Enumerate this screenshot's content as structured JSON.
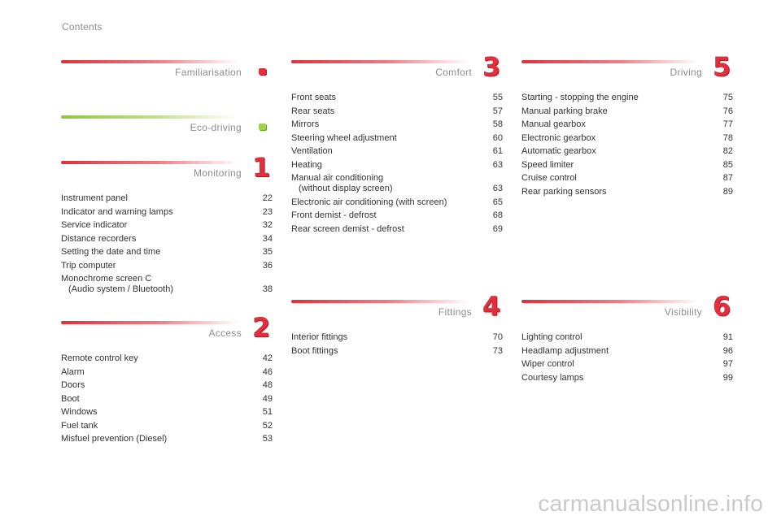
{
  "page_title": "Contents",
  "watermark": "carmanualsonline.info",
  "sections": {
    "familiarisation": {
      "title": "Familiarisation",
      "number": ""
    },
    "eco_driving": {
      "title": "Eco-driving",
      "number": ""
    },
    "monitoring": {
      "title": "Monitoring",
      "number": "1",
      "items": [
        {
          "label": "Instrument panel",
          "page": "22"
        },
        {
          "label": "Indicator and warning lamps",
          "page": "23"
        },
        {
          "label": "Service indicator",
          "page": "32"
        },
        {
          "label": "Distance recorders",
          "page": "34"
        },
        {
          "label": "Setting the date and time",
          "page": "35"
        },
        {
          "label": "Trip computer",
          "page": "36"
        },
        {
          "label": "Monochrome screen C",
          "sub": "(Audio system / Bluetooth)",
          "page": "38"
        }
      ]
    },
    "access": {
      "title": "Access",
      "number": "2",
      "items": [
        {
          "label": "Remote control key",
          "page": "42"
        },
        {
          "label": "Alarm",
          "page": "46"
        },
        {
          "label": "Doors",
          "page": "48"
        },
        {
          "label": "Boot",
          "page": "49"
        },
        {
          "label": "Windows",
          "page": "51"
        },
        {
          "label": "Fuel tank",
          "page": "52"
        },
        {
          "label": "Misfuel prevention (Diesel)",
          "page": "53"
        }
      ]
    },
    "comfort": {
      "title": "Comfort",
      "number": "3",
      "items": [
        {
          "label": "Front seats",
          "page": "55"
        },
        {
          "label": "Rear seats",
          "page": "57"
        },
        {
          "label": "Mirrors",
          "page": "58"
        },
        {
          "label": "Steering wheel adjustment",
          "page": "60"
        },
        {
          "label": "Ventilation",
          "page": "61"
        },
        {
          "label": "Heating",
          "page": "63"
        },
        {
          "label": "Manual air conditioning",
          "sub": "(without display screen)",
          "page": "63"
        },
        {
          "label": "Electronic air conditioning (with screen)",
          "page": "65"
        },
        {
          "label": "Front demist - defrost",
          "page": "68"
        },
        {
          "label": "Rear screen demist - defrost",
          "page": "69"
        }
      ]
    },
    "fittings": {
      "title": "Fittings",
      "number": "4",
      "items": [
        {
          "label": "Interior fittings",
          "page": "70"
        },
        {
          "label": "Boot fittings",
          "page": "73"
        }
      ]
    },
    "driving": {
      "title": "Driving",
      "number": "5",
      "items": [
        {
          "label": "Starting - stopping the engine",
          "page": "75"
        },
        {
          "label": "Manual parking brake",
          "page": "76"
        },
        {
          "label": "Manual gearbox",
          "page": "77"
        },
        {
          "label": "Electronic gearbox",
          "page": "78"
        },
        {
          "label": "Automatic gearbox",
          "page": "82"
        },
        {
          "label": "Speed limiter",
          "page": "85"
        },
        {
          "label": "Cruise control",
          "page": "87"
        },
        {
          "label": "Rear parking sensors",
          "page": "89"
        }
      ]
    },
    "visibility": {
      "title": "Visibility",
      "number": "6",
      "items": [
        {
          "label": "Lighting control",
          "page": "91"
        },
        {
          "label": "Headlamp adjustment",
          "page": "96"
        },
        {
          "label": "Wiper control",
          "page": "97"
        },
        {
          "label": "Courtesy lamps",
          "page": "99"
        }
      ]
    }
  },
  "colors": {
    "accent_red": "#e0303d",
    "accent_green": "#8fc741",
    "heading_gray": "#8c8c8c",
    "text": "#333333"
  }
}
